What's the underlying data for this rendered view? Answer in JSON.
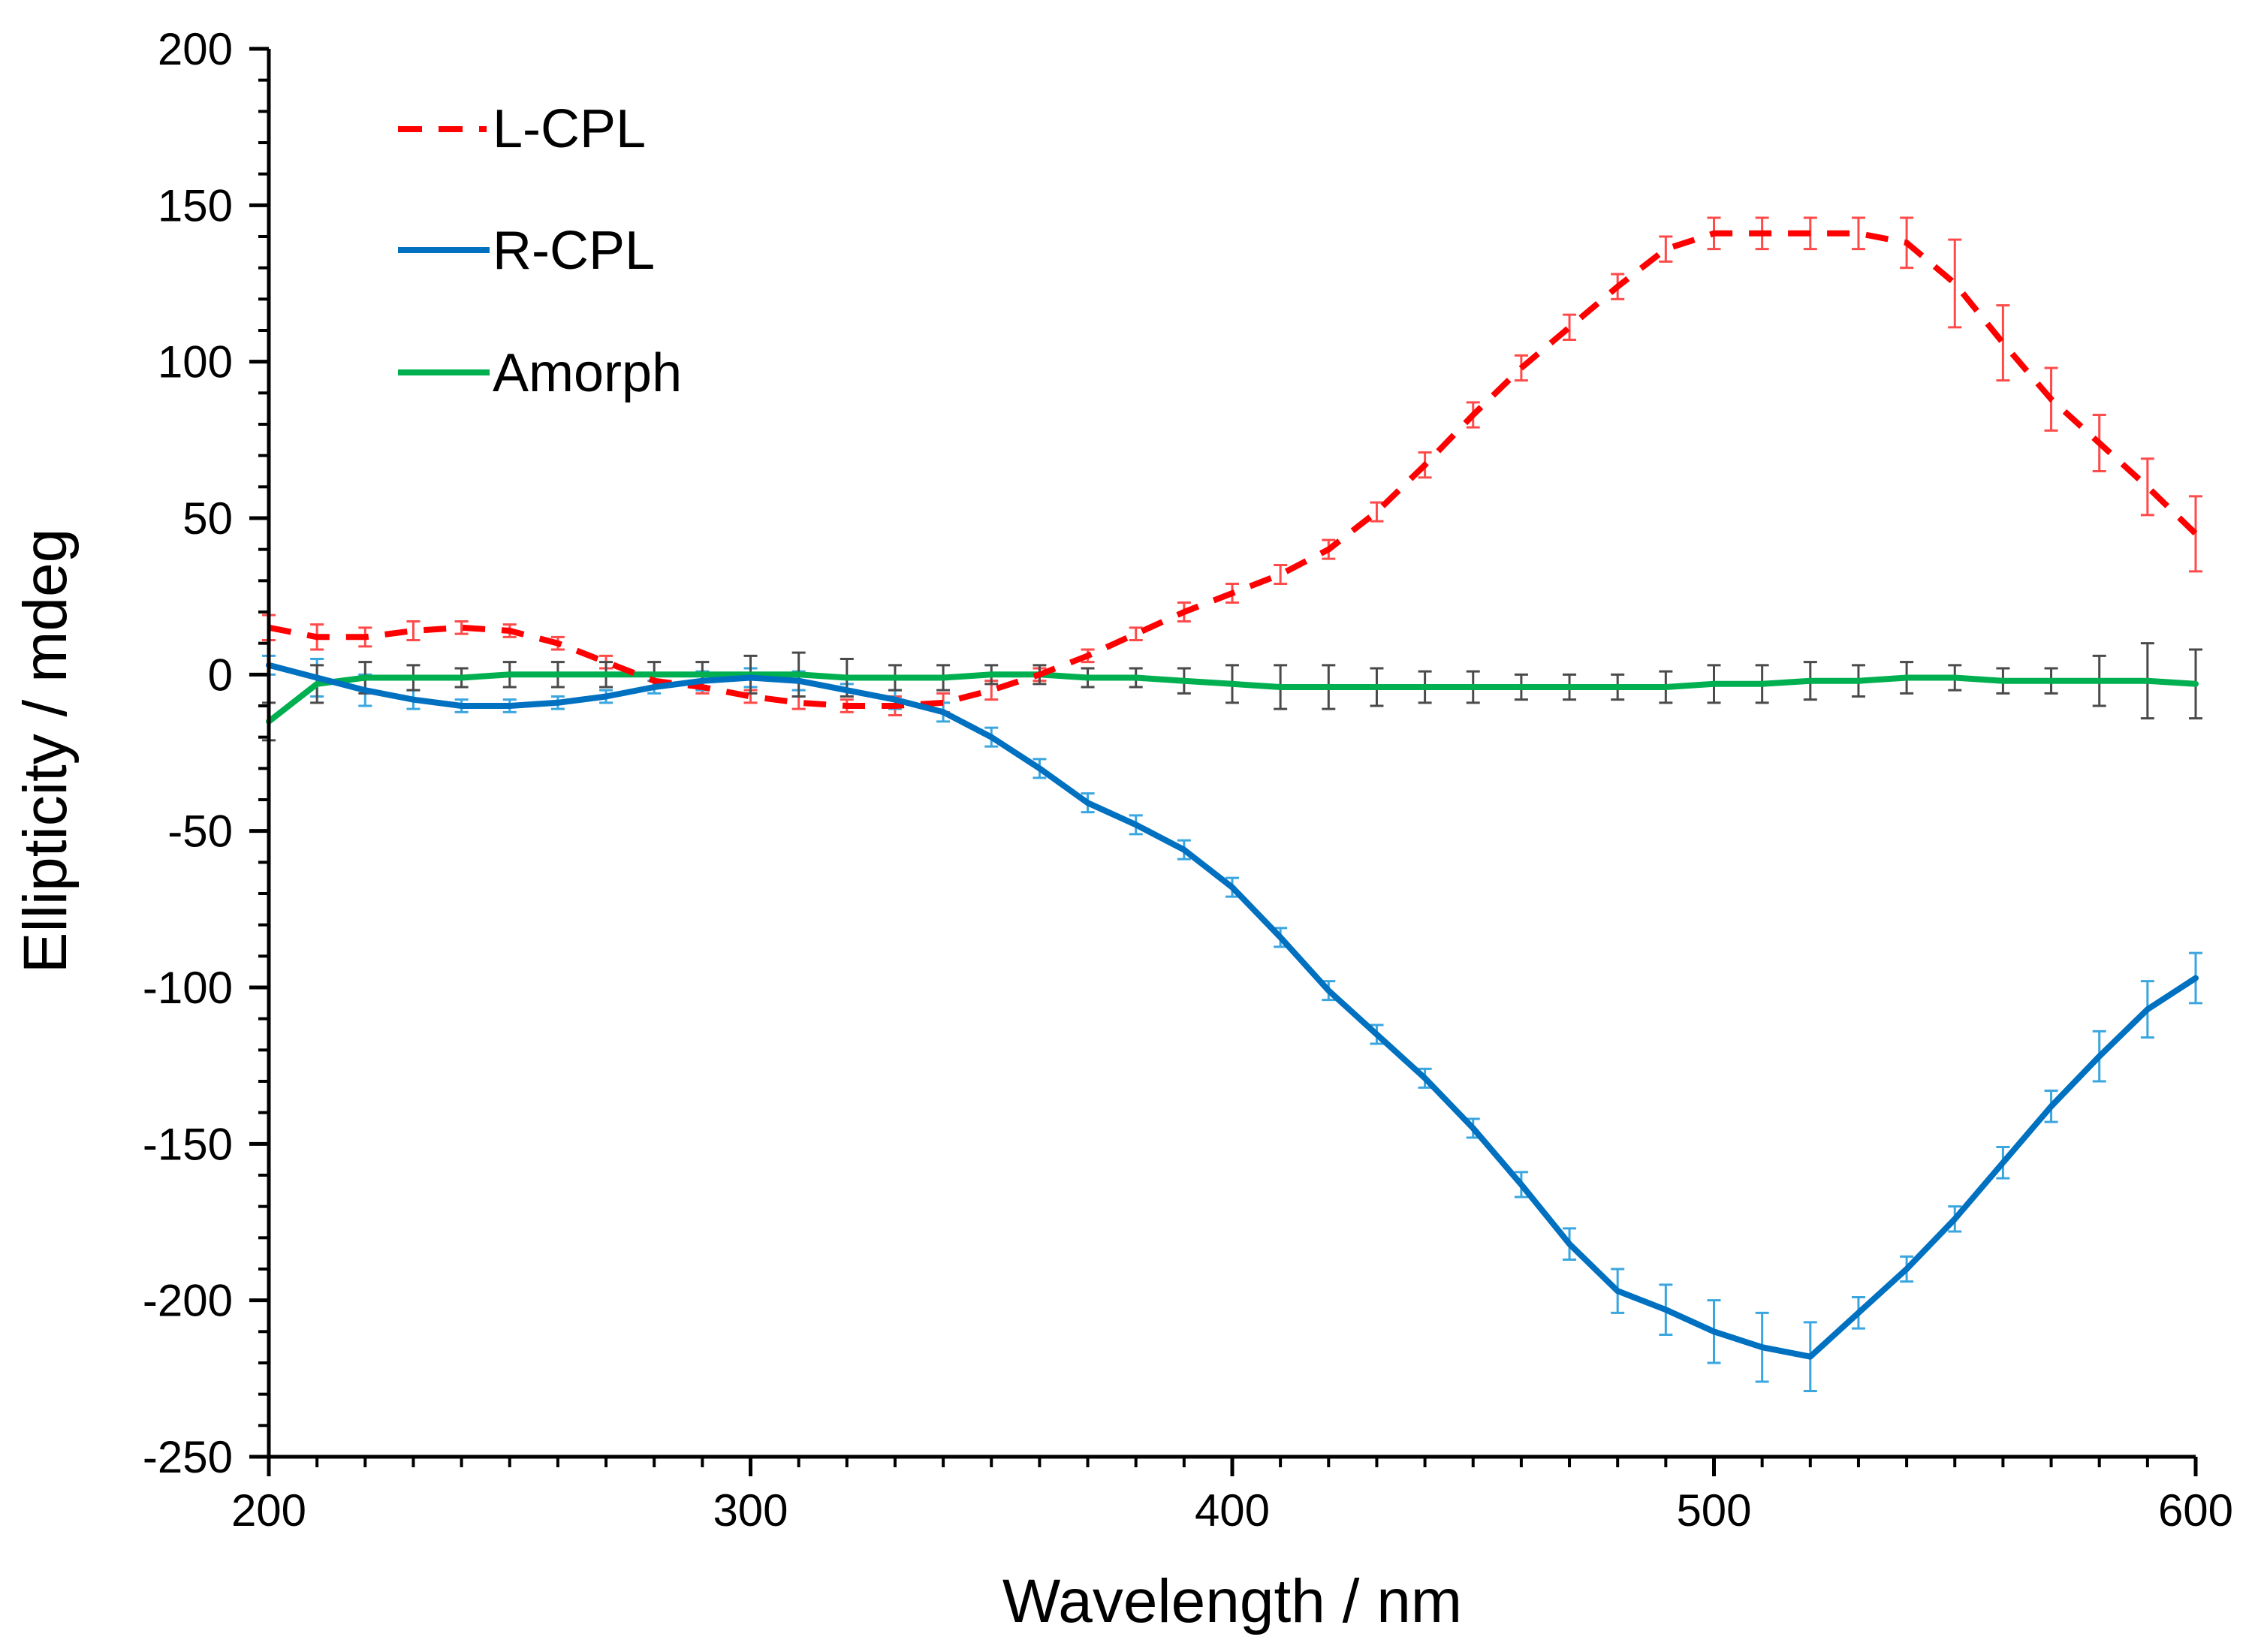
{
  "chart_data": {
    "type": "line",
    "xlabel": "Wavelength / nm",
    "ylabel": "Ellipticity / mdeg",
    "xlim": [
      200,
      600
    ],
    "ylim": [
      -250,
      200
    ],
    "xticks": [
      200,
      300,
      400,
      500,
      600
    ],
    "yticks": [
      -250,
      -200,
      -150,
      -100,
      -50,
      0,
      50,
      100,
      150,
      200
    ],
    "xminor": 10,
    "yminor": 10,
    "grid": false,
    "legend_position": "top-left",
    "series": [
      {
        "name": "L-CPL",
        "color": "#ff0000",
        "dash": true,
        "x": [
          200,
          210,
          220,
          230,
          240,
          250,
          260,
          270,
          280,
          290,
          300,
          310,
          320,
          330,
          340,
          350,
          360,
          370,
          380,
          390,
          400,
          410,
          420,
          430,
          440,
          450,
          460,
          470,
          480,
          490,
          500,
          510,
          520,
          530,
          540,
          550,
          560,
          570,
          580,
          590,
          600
        ],
        "y": [
          15,
          12,
          12,
          14,
          15,
          14,
          10,
          4,
          -2,
          -4,
          -7,
          -9,
          -10,
          -10,
          -9,
          -5,
          0,
          6,
          13,
          20,
          26,
          32,
          40,
          52,
          67,
          83,
          98,
          111,
          124,
          136,
          141,
          141,
          141,
          141,
          138,
          125,
          106,
          88,
          74,
          60,
          45
        ],
        "err": [
          4,
          4,
          3,
          3,
          2,
          2,
          2,
          2,
          2,
          2,
          2,
          2,
          2,
          3,
          3,
          3,
          2,
          2,
          2,
          3,
          3,
          3,
          3,
          3,
          4,
          4,
          4,
          4,
          4,
          4,
          5,
          5,
          5,
          5,
          8,
          14,
          12,
          10,
          9,
          9,
          12
        ]
      },
      {
        "name": "R-CPL",
        "color": "#0070c0",
        "dash": false,
        "x": [
          200,
          210,
          220,
          230,
          240,
          250,
          260,
          270,
          280,
          290,
          300,
          310,
          320,
          330,
          340,
          350,
          360,
          370,
          380,
          390,
          400,
          410,
          420,
          430,
          440,
          450,
          460,
          470,
          480,
          490,
          500,
          510,
          520,
          530,
          540,
          550,
          560,
          570,
          580,
          590,
          600
        ],
        "y": [
          3,
          -1,
          -5,
          -8,
          -10,
          -10,
          -9,
          -7,
          -4,
          -2,
          -1,
          -2,
          -5,
          -8,
          -12,
          -20,
          -30,
          -41,
          -48,
          -56,
          -68,
          -84,
          -101,
          -115,
          -129,
          -145,
          -163,
          -182,
          -197,
          -203,
          -210,
          -215,
          -218,
          -204,
          -190,
          -174,
          -156,
          -138,
          -122,
          -107,
          -97
        ],
        "err": [
          3,
          6,
          5,
          3,
          2,
          2,
          2,
          2,
          2,
          3,
          3,
          3,
          2,
          3,
          3,
          3,
          3,
          3,
          3,
          3,
          3,
          3,
          3,
          3,
          3,
          3,
          4,
          5,
          7,
          8,
          10,
          11,
          11,
          5,
          4,
          4,
          5,
          5,
          8,
          9,
          8
        ]
      },
      {
        "name": "Amorph",
        "color": "#00b050",
        "dash": false,
        "x": [
          200,
          210,
          220,
          230,
          240,
          250,
          260,
          270,
          280,
          290,
          300,
          310,
          320,
          330,
          340,
          350,
          360,
          370,
          380,
          390,
          400,
          410,
          420,
          430,
          440,
          450,
          460,
          470,
          480,
          490,
          500,
          510,
          520,
          530,
          540,
          550,
          560,
          570,
          580,
          590,
          600
        ],
        "y": [
          -15,
          -3,
          -1,
          -1,
          -1,
          0,
          0,
          0,
          0,
          0,
          0,
          0,
          -1,
          -1,
          -1,
          0,
          0,
          -1,
          -1,
          -2,
          -3,
          -4,
          -4,
          -4,
          -4,
          -4,
          -4,
          -4,
          -4,
          -4,
          -3,
          -3,
          -2,
          -2,
          -1,
          -1,
          -2,
          -2,
          -2,
          -2,
          -3
        ],
        "err": [
          6,
          6,
          5,
          4,
          3,
          4,
          4,
          4,
          4,
          4,
          6,
          7,
          6,
          4,
          4,
          3,
          3,
          3,
          3,
          4,
          6,
          7,
          7,
          6,
          5,
          5,
          4,
          4,
          4,
          5,
          6,
          6,
          6,
          5,
          5,
          4,
          4,
          4,
          8,
          12,
          11
        ]
      }
    ]
  }
}
